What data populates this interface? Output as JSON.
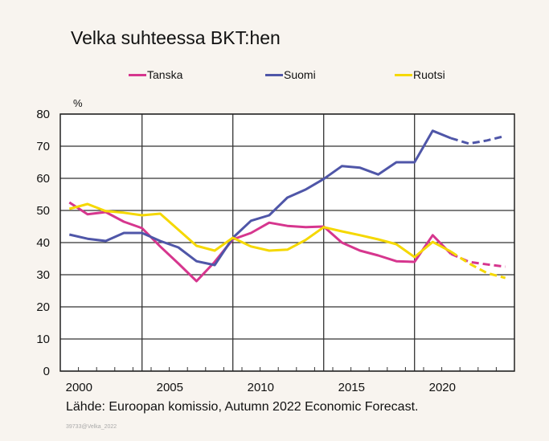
{
  "chart_data": {
    "type": "line",
    "title": "Velka suhteessa BKT:hen",
    "ylabel": "%",
    "xlabel": "",
    "ylim": [
      0,
      80
    ],
    "yticks": [
      0,
      10,
      20,
      30,
      40,
      50,
      60,
      70,
      80
    ],
    "xticks": [
      2000,
      2005,
      2010,
      2015,
      2020
    ],
    "grid": true,
    "legend_position": "top",
    "forecast_from": 2021,
    "x": [
      2000,
      2001,
      2002,
      2003,
      2004,
      2005,
      2006,
      2007,
      2008,
      2009,
      2010,
      2011,
      2012,
      2013,
      2014,
      2015,
      2016,
      2017,
      2018,
      2019,
      2020,
      2021,
      2022,
      2023,
      2024
    ],
    "series": [
      {
        "name": "Tanska",
        "color": "#d6368e",
        "values": [
          52.5,
          48.8,
          49.5,
          46.5,
          44.5,
          38.8,
          33.5,
          28,
          34,
          41,
          43,
          46.2,
          45.2,
          44.8,
          45,
          40,
          37.5,
          36,
          34.2,
          34,
          42.3,
          36.5,
          34,
          33.2,
          32.5
        ]
      },
      {
        "name": "Suomi",
        "color": "#4f56a8",
        "values": [
          42.5,
          41.2,
          40.5,
          43,
          43,
          40.5,
          38.5,
          34.2,
          33,
          41.5,
          46.8,
          48.5,
          54,
          56.5,
          59.8,
          63.8,
          63.3,
          61.2,
          65,
          65,
          74.8,
          72.5,
          70.8,
          71.8,
          73.2
        ]
      },
      {
        "name": "Ruotsi",
        "color": "#f5d800",
        "values": [
          50.5,
          52,
          49.8,
          49.3,
          48.5,
          49,
          44,
          39,
          37.5,
          41.5,
          38.8,
          37.5,
          37.8,
          40.8,
          44.8,
          43.5,
          42.3,
          41,
          39.5,
          35.5,
          40.2,
          37.2,
          33.5,
          30.5,
          29
        ]
      }
    ]
  },
  "source": "Lähde: Euroopan komissio, Autumn 2022 Economic Forecast.",
  "code": "39733@Velka_2022"
}
